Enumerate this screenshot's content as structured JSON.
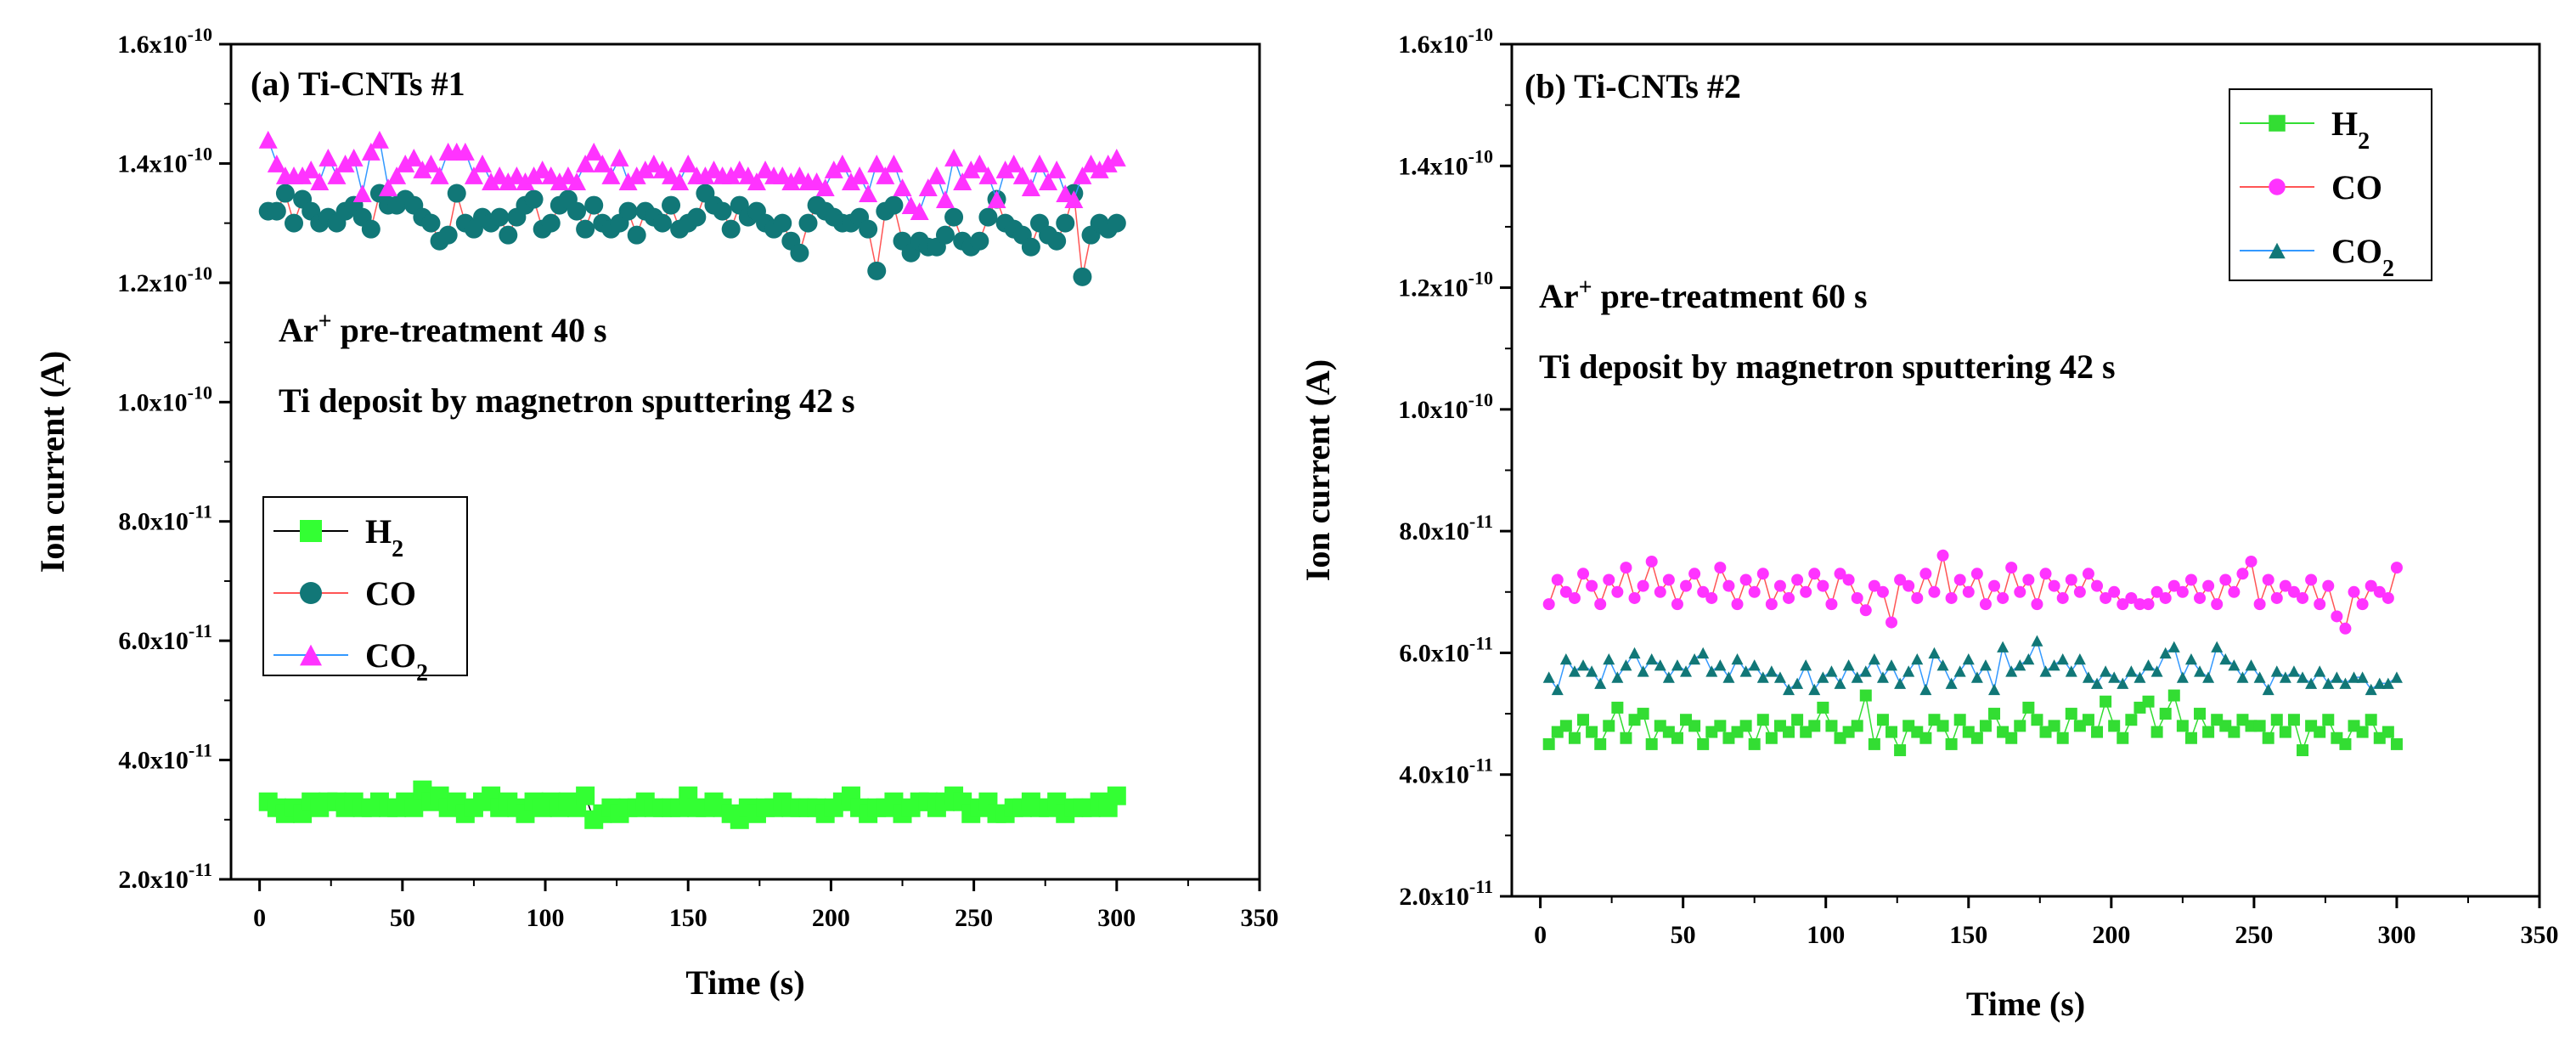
{
  "chart_data": [
    {
      "type": "scatter",
      "title": "(a) Ti-CNTs #1",
      "xlabel": "Time (s)",
      "ylabel": "Ion current (A)",
      "xlim": [
        -10,
        350
      ],
      "ylim": [
        2e-11,
        1.6e-10
      ],
      "xticks": [
        0,
        50,
        100,
        150,
        200,
        250,
        300,
        350
      ],
      "yticks": [
        {
          "mant": "2.0x10",
          "exp": "-11"
        },
        {
          "mant": "4.0x10",
          "exp": "-11"
        },
        {
          "mant": "6.0x10",
          "exp": "-11"
        },
        {
          "mant": "8.0x10",
          "exp": "-11"
        },
        {
          "mant": "1.0x10",
          "exp": "-10"
        },
        {
          "mant": "1.2x10",
          "exp": "-10"
        },
        {
          "mant": "1.4x10",
          "exp": "-10"
        },
        {
          "mant": "1.6x10",
          "exp": "-10"
        }
      ],
      "annotations": [
        {
          "pre": "Ar",
          "sup": "+",
          "post": " pre-treatment 40 s"
        },
        {
          "pre": "Ti deposit by magnetron sputtering 42 s",
          "sup": "",
          "post": ""
        }
      ],
      "legend_position": "middle-left",
      "series": [
        {
          "name": "H",
          "sub": "2",
          "marker": "square",
          "fill": "#33ff33",
          "line": "#000000",
          "x_start": 3,
          "x_step": 3,
          "values": [
            3.3,
            3.2,
            3.1,
            3.2,
            3.1,
            3.3,
            3.2,
            3.3,
            3.3,
            3.2,
            3.3,
            3.2,
            3.2,
            3.3,
            3.2,
            3.2,
            3.3,
            3.2,
            3.5,
            3.3,
            3.4,
            3.2,
            3.3,
            3.1,
            3.2,
            3.3,
            3.4,
            3.2,
            3.3,
            3.2,
            3.1,
            3.3,
            3.2,
            3.3,
            3.2,
            3.3,
            3.2,
            3.4,
            3.0,
            3.1,
            3.2,
            3.1,
            3.2,
            3.2,
            3.3,
            3.2,
            3.2,
            3.2,
            3.2,
            3.4,
            3.2,
            3.2,
            3.3,
            3.2,
            3.1,
            3.0,
            3.2,
            3.1,
            3.2,
            3.2,
            3.3,
            3.2,
            3.2,
            3.2,
            3.2,
            3.1,
            3.2,
            3.3,
            3.4,
            3.2,
            3.1,
            3.2,
            3.2,
            3.3,
            3.1,
            3.2,
            3.3,
            3.3,
            3.2,
            3.3,
            3.4,
            3.3,
            3.1,
            3.2,
            3.3,
            3.1,
            3.1,
            3.2,
            3.2,
            3.3,
            3.2,
            3.2,
            3.3,
            3.1,
            3.2,
            3.2,
            3.2,
            3.3,
            3.2,
            3.4
          ],
          "scale": 1e-11
        },
        {
          "name": "CO",
          "sub": "",
          "marker": "circle",
          "fill": "#117777",
          "line": "#ff5555",
          "x_start": 3,
          "x_step": 3,
          "values": [
            1.32,
            1.32,
            1.35,
            1.3,
            1.34,
            1.32,
            1.3,
            1.31,
            1.3,
            1.32,
            1.33,
            1.31,
            1.29,
            1.35,
            1.33,
            1.33,
            1.34,
            1.33,
            1.31,
            1.3,
            1.27,
            1.28,
            1.35,
            1.3,
            1.29,
            1.31,
            1.3,
            1.31,
            1.28,
            1.31,
            1.33,
            1.34,
            1.29,
            1.3,
            1.33,
            1.34,
            1.32,
            1.29,
            1.33,
            1.3,
            1.29,
            1.3,
            1.32,
            1.28,
            1.32,
            1.31,
            1.3,
            1.33,
            1.29,
            1.3,
            1.31,
            1.35,
            1.33,
            1.32,
            1.29,
            1.33,
            1.31,
            1.32,
            1.3,
            1.29,
            1.3,
            1.27,
            1.25,
            1.3,
            1.33,
            1.32,
            1.31,
            1.3,
            1.3,
            1.31,
            1.29,
            1.22,
            1.32,
            1.33,
            1.27,
            1.25,
            1.27,
            1.26,
            1.26,
            1.28,
            1.31,
            1.27,
            1.26,
            1.27,
            1.31,
            1.34,
            1.3,
            1.29,
            1.28,
            1.26,
            1.3,
            1.28,
            1.27,
            1.3,
            1.35,
            1.21,
            1.28,
            1.3,
            1.29,
            1.3
          ],
          "scale": 1e-10
        },
        {
          "name": "CO",
          "sub": "2",
          "marker": "triangle",
          "fill": "#ff33ff",
          "line": "#3399ff",
          "x_start": 3,
          "x_step": 3,
          "values": [
            1.44,
            1.4,
            1.38,
            1.38,
            1.38,
            1.39,
            1.37,
            1.41,
            1.38,
            1.4,
            1.41,
            1.35,
            1.42,
            1.44,
            1.36,
            1.38,
            1.4,
            1.41,
            1.39,
            1.4,
            1.38,
            1.42,
            1.42,
            1.42,
            1.38,
            1.4,
            1.37,
            1.38,
            1.37,
            1.38,
            1.37,
            1.38,
            1.39,
            1.38,
            1.37,
            1.38,
            1.37,
            1.4,
            1.42,
            1.4,
            1.38,
            1.41,
            1.37,
            1.38,
            1.39,
            1.4,
            1.39,
            1.38,
            1.37,
            1.4,
            1.38,
            1.38,
            1.39,
            1.38,
            1.38,
            1.39,
            1.38,
            1.37,
            1.39,
            1.38,
            1.38,
            1.37,
            1.38,
            1.37,
            1.37,
            1.36,
            1.39,
            1.4,
            1.37,
            1.38,
            1.35,
            1.4,
            1.38,
            1.4,
            1.36,
            1.33,
            1.32,
            1.36,
            1.38,
            1.34,
            1.41,
            1.37,
            1.39,
            1.4,
            1.38,
            1.34,
            1.39,
            1.4,
            1.38,
            1.36,
            1.4,
            1.37,
            1.39,
            1.35,
            1.34,
            1.38,
            1.4,
            1.39,
            1.4,
            1.41
          ],
          "scale": 1e-10
        }
      ]
    },
    {
      "type": "scatter",
      "title": "(b) Ti-CNTs #2",
      "xlabel": "Time (s)",
      "ylabel": "Ion current (A)",
      "xlim": [
        -10,
        350
      ],
      "ylim": [
        2e-11,
        1.6e-10
      ],
      "xticks": [
        0,
        50,
        100,
        150,
        200,
        250,
        300,
        350
      ],
      "yticks": [
        {
          "mant": "2.0x10",
          "exp": "-11"
        },
        {
          "mant": "4.0x10",
          "exp": "-11"
        },
        {
          "mant": "6.0x10",
          "exp": "-11"
        },
        {
          "mant": "8.0x10",
          "exp": "-11"
        },
        {
          "mant": "1.0x10",
          "exp": "-10"
        },
        {
          "mant": "1.2x10",
          "exp": "-10"
        },
        {
          "mant": "1.4x10",
          "exp": "-10"
        },
        {
          "mant": "1.6x10",
          "exp": "-10"
        }
      ],
      "annotations": [
        {
          "pre": "Ar",
          "sup": "+",
          "post": " pre-treatment 60 s"
        },
        {
          "pre": "Ti deposit by magnetron sputtering 42 s",
          "sup": "",
          "post": ""
        }
      ],
      "legend_position": "top-right",
      "series": [
        {
          "name": "H",
          "sub": "2",
          "marker": "square",
          "fill": "#33dd33",
          "line": "#33dd33",
          "x_start": 3,
          "x_step": 3,
          "values": [
            4.5,
            4.7,
            4.8,
            4.6,
            4.9,
            4.7,
            4.5,
            4.8,
            5.1,
            4.6,
            4.9,
            5.0,
            4.5,
            4.8,
            4.7,
            4.6,
            4.9,
            4.8,
            4.5,
            4.7,
            4.8,
            4.6,
            4.7,
            4.8,
            4.5,
            4.9,
            4.6,
            4.8,
            4.7,
            4.9,
            4.7,
            4.8,
            5.1,
            4.8,
            4.6,
            4.7,
            4.8,
            5.3,
            4.5,
            4.9,
            4.7,
            4.4,
            4.8,
            4.7,
            4.6,
            4.9,
            4.8,
            4.5,
            4.9,
            4.7,
            4.6,
            4.8,
            5.0,
            4.7,
            4.6,
            4.8,
            5.1,
            4.9,
            4.7,
            4.8,
            4.6,
            5.0,
            4.8,
            4.9,
            4.7,
            5.2,
            4.8,
            4.6,
            4.9,
            5.1,
            5.2,
            4.7,
            5.0,
            5.3,
            4.8,
            4.6,
            5.0,
            4.7,
            4.9,
            4.8,
            4.7,
            4.9,
            4.8,
            4.8,
            4.6,
            4.9,
            4.7,
            4.9,
            4.4,
            4.8,
            4.7,
            4.9,
            4.6,
            4.5,
            4.8,
            4.7,
            4.9,
            4.6,
            4.7,
            4.5
          ],
          "scale": 1e-11
        },
        {
          "name": "CO",
          "sub": "",
          "marker": "circle",
          "fill": "#ff33ff",
          "line": "#ff5555",
          "x_start": 3,
          "x_step": 3,
          "values": [
            6.8,
            7.2,
            7.0,
            6.9,
            7.3,
            7.1,
            6.8,
            7.2,
            7.0,
            7.4,
            6.9,
            7.1,
            7.5,
            7.0,
            7.2,
            6.8,
            7.1,
            7.3,
            7.0,
            6.9,
            7.4,
            7.1,
            6.8,
            7.2,
            7.0,
            7.3,
            6.8,
            7.1,
            6.9,
            7.2,
            7.0,
            7.3,
            7.1,
            6.8,
            7.3,
            7.2,
            6.9,
            6.7,
            7.1,
            7.0,
            6.5,
            7.2,
            7.1,
            6.9,
            7.3,
            7.0,
            7.6,
            6.9,
            7.2,
            7.0,
            7.3,
            6.8,
            7.1,
            6.9,
            7.4,
            7.0,
            7.2,
            6.8,
            7.3,
            7.1,
            6.9,
            7.2,
            7.0,
            7.3,
            7.1,
            6.9,
            7.0,
            6.8,
            6.9,
            6.8,
            6.8,
            7.0,
            6.9,
            7.1,
            7.0,
            7.2,
            6.9,
            7.1,
            6.8,
            7.2,
            7.0,
            7.3,
            7.5,
            6.8,
            7.2,
            6.9,
            7.1,
            7.0,
            6.9,
            7.2,
            6.8,
            7.1,
            6.6,
            6.4,
            7.0,
            6.8,
            7.1,
            7.0,
            6.9,
            7.4
          ],
          "scale": 1e-11
        },
        {
          "name": "CO",
          "sub": "2",
          "marker": "triangle",
          "fill": "#117777",
          "line": "#3399ff",
          "x_start": 3,
          "x_step": 3,
          "values": [
            5.6,
            5.4,
            5.9,
            5.7,
            5.8,
            5.7,
            5.5,
            5.9,
            5.6,
            5.8,
            6.0,
            5.7,
            5.9,
            5.8,
            5.6,
            5.8,
            5.7,
            5.9,
            6.0,
            5.7,
            5.8,
            5.6,
            5.9,
            5.7,
            5.8,
            5.6,
            5.7,
            5.6,
            5.4,
            5.5,
            5.8,
            5.4,
            5.6,
            5.7,
            5.5,
            5.8,
            5.6,
            5.7,
            5.9,
            5.6,
            5.8,
            5.5,
            5.7,
            5.9,
            5.4,
            6.0,
            5.8,
            5.5,
            5.7,
            5.9,
            5.6,
            5.8,
            5.4,
            6.1,
            5.7,
            5.8,
            5.9,
            6.2,
            5.7,
            5.8,
            5.9,
            5.7,
            5.9,
            5.6,
            5.5,
            5.7,
            5.6,
            5.5,
            5.7,
            5.6,
            5.8,
            5.7,
            6.0,
            6.1,
            5.6,
            5.9,
            5.7,
            5.6,
            6.1,
            5.9,
            5.8,
            5.6,
            5.8,
            5.6,
            5.4,
            5.7,
            5.6,
            5.7,
            5.6,
            5.5,
            5.7,
            5.5,
            5.6,
            5.5,
            5.6,
            5.6,
            5.4,
            5.5,
            5.5,
            5.6
          ],
          "scale": 1e-11
        }
      ]
    }
  ]
}
